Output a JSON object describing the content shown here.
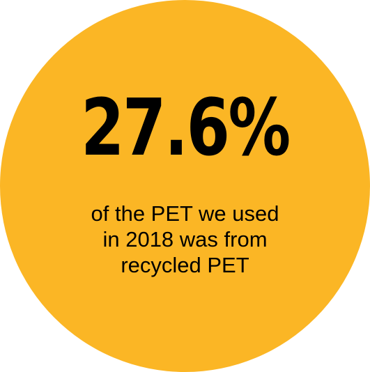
{
  "infographic": {
    "stat_value": "27.6%",
    "caption_lines": [
      "of the PET we used",
      "in 2018 was from",
      "recycled PET"
    ]
  },
  "colors": {
    "circle_fill": "#fbb625",
    "text": "#000000",
    "background": "#ffffff"
  }
}
